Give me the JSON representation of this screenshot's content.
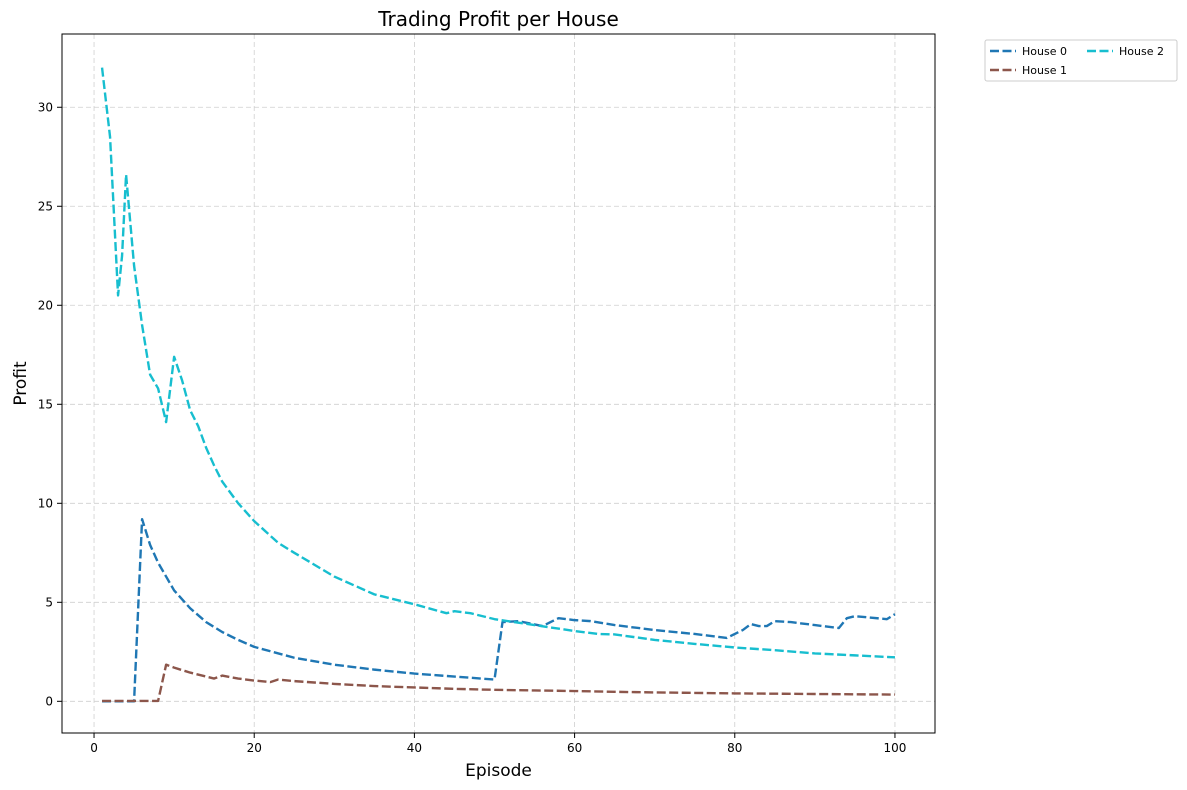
{
  "chart_data": {
    "type": "line",
    "title": "Trading Profit per House",
    "xlabel": "Episode",
    "ylabel": "Profit",
    "xlim": [
      -4,
      105
    ],
    "ylim": [
      -1.6,
      33.7
    ],
    "xticks": [
      0,
      20,
      40,
      60,
      80,
      100
    ],
    "yticks": [
      0,
      5,
      10,
      15,
      20,
      25,
      30
    ],
    "grid": true,
    "line_style": "dashed",
    "legend": {
      "placement": "outside-top-right",
      "columns": 2
    },
    "series": [
      {
        "name": "House 0",
        "color": "#1f77b4",
        "points": [
          [
            1,
            0
          ],
          [
            5,
            0
          ],
          [
            6,
            9.2
          ],
          [
            7,
            7.9
          ],
          [
            8,
            7.0
          ],
          [
            9,
            6.3
          ],
          [
            10,
            5.6
          ],
          [
            12,
            4.7
          ],
          [
            14,
            4.0
          ],
          [
            16,
            3.5
          ],
          [
            18,
            3.1
          ],
          [
            20,
            2.75
          ],
          [
            25,
            2.2
          ],
          [
            30,
            1.85
          ],
          [
            35,
            1.6
          ],
          [
            40,
            1.4
          ],
          [
            45,
            1.25
          ],
          [
            50,
            1.1
          ],
          [
            51,
            4.0
          ],
          [
            53,
            4.05
          ],
          [
            56,
            3.8
          ],
          [
            57,
            4.0
          ],
          [
            58,
            4.2
          ],
          [
            60,
            4.1
          ],
          [
            62,
            4.05
          ],
          [
            65,
            3.85
          ],
          [
            70,
            3.6
          ],
          [
            75,
            3.4
          ],
          [
            78,
            3.25
          ],
          [
            79,
            3.2
          ],
          [
            81,
            3.6
          ],
          [
            82,
            3.9
          ],
          [
            83,
            3.8
          ],
          [
            84,
            3.8
          ],
          [
            85,
            4.05
          ],
          [
            87,
            4.0
          ],
          [
            90,
            3.85
          ],
          [
            93,
            3.7
          ],
          [
            94,
            4.2
          ],
          [
            95,
            4.3
          ],
          [
            99,
            4.15
          ],
          [
            100,
            4.4
          ]
        ]
      },
      {
        "name": "House 1",
        "color": "#8c564b",
        "points": [
          [
            1,
            0.02
          ],
          [
            5,
            0.02
          ],
          [
            8,
            0.02
          ],
          [
            9,
            1.85
          ],
          [
            10,
            1.7
          ],
          [
            12,
            1.45
          ],
          [
            14,
            1.25
          ],
          [
            15,
            1.15
          ],
          [
            16,
            1.3
          ],
          [
            18,
            1.15
          ],
          [
            20,
            1.05
          ],
          [
            22,
            0.97
          ],
          [
            23,
            1.1
          ],
          [
            25,
            1.02
          ],
          [
            30,
            0.88
          ],
          [
            35,
            0.77
          ],
          [
            40,
            0.7
          ],
          [
            45,
            0.63
          ],
          [
            50,
            0.58
          ],
          [
            55,
            0.55
          ],
          [
            60,
            0.52
          ],
          [
            65,
            0.48
          ],
          [
            70,
            0.45
          ],
          [
            80,
            0.4
          ],
          [
            90,
            0.37
          ],
          [
            100,
            0.34
          ]
        ]
      },
      {
        "name": "House 2",
        "color": "#17becf",
        "points": [
          [
            1,
            32.0
          ],
          [
            2,
            28.5
          ],
          [
            3,
            20.5
          ],
          [
            3.5,
            22.5
          ],
          [
            4,
            26.6
          ],
          [
            5,
            22.0
          ],
          [
            6,
            19.0
          ],
          [
            7,
            16.5
          ],
          [
            8,
            15.8
          ],
          [
            9,
            14.1
          ],
          [
            10,
            17.4
          ],
          [
            11,
            16.2
          ],
          [
            12,
            14.7
          ],
          [
            13,
            13.9
          ],
          [
            14,
            12.8
          ],
          [
            15,
            11.9
          ],
          [
            16,
            11.1
          ],
          [
            18,
            10.0
          ],
          [
            20,
            9.1
          ],
          [
            23,
            8.0
          ],
          [
            25,
            7.5
          ],
          [
            30,
            6.3
          ],
          [
            35,
            5.4
          ],
          [
            40,
            4.9
          ],
          [
            44,
            4.45
          ],
          [
            45,
            4.55
          ],
          [
            47,
            4.45
          ],
          [
            50,
            4.15
          ],
          [
            55,
            3.85
          ],
          [
            60,
            3.55
          ],
          [
            63,
            3.4
          ],
          [
            65,
            3.38
          ],
          [
            70,
            3.1
          ],
          [
            75,
            2.9
          ],
          [
            80,
            2.72
          ],
          [
            85,
            2.58
          ],
          [
            90,
            2.42
          ],
          [
            95,
            2.32
          ],
          [
            100,
            2.22
          ]
        ]
      }
    ]
  }
}
